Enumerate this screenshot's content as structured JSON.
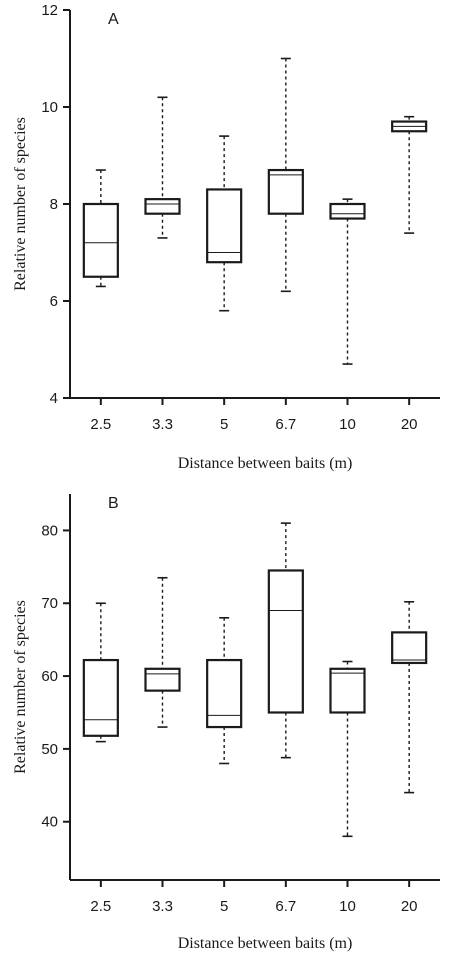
{
  "chart_data": [
    {
      "type": "box",
      "panel_label": "A",
      "xlabel": "Distance between baits (m)",
      "ylabel": "Relative number of species",
      "categories": [
        "2.5",
        "3.3",
        "5",
        "6.7",
        "10",
        "20"
      ],
      "ylim": [
        4,
        12
      ],
      "yticks": [
        4,
        6,
        8,
        10,
        12
      ],
      "grid": false,
      "boxes": [
        {
          "min": 6.3,
          "q1": 6.5,
          "median": 7.2,
          "q3": 8.0,
          "max": 8.7
        },
        {
          "min": 7.3,
          "q1": 7.8,
          "median": 8.0,
          "q3": 8.1,
          "max": 10.2
        },
        {
          "min": 5.8,
          "q1": 6.8,
          "median": 7.0,
          "q3": 8.3,
          "max": 9.4
        },
        {
          "min": 6.2,
          "q1": 7.8,
          "median": 8.6,
          "q3": 8.7,
          "max": 11.0
        },
        {
          "min": 4.7,
          "q1": 7.7,
          "median": 7.8,
          "q3": 8.0,
          "max": 8.1
        },
        {
          "min": 7.4,
          "q1": 9.5,
          "median": 9.6,
          "q3": 9.7,
          "max": 9.8
        }
      ]
    },
    {
      "type": "box",
      "panel_label": "B",
      "xlabel": "Distance between baits (m)",
      "ylabel": "Relative number of species",
      "categories": [
        "2.5",
        "3.3",
        "5",
        "6.7",
        "10",
        "20"
      ],
      "ylim": [
        32,
        85
      ],
      "yticks": [
        40,
        50,
        60,
        70,
        80
      ],
      "grid": false,
      "boxes": [
        {
          "min": 51,
          "q1": 51.8,
          "median": 54,
          "q3": 62.2,
          "max": 70
        },
        {
          "min": 53,
          "q1": 58,
          "median": 60.3,
          "q3": 61,
          "max": 73.5
        },
        {
          "min": 48,
          "q1": 53,
          "median": 54.6,
          "q3": 62.2,
          "max": 68
        },
        {
          "min": 48.8,
          "q1": 55,
          "median": 69,
          "q3": 74.5,
          "max": 81
        },
        {
          "min": 38,
          "q1": 55,
          "median": 60.4,
          "q3": 61,
          "max": 62
        },
        {
          "min": 44,
          "q1": 61.8,
          "median": 62.2,
          "q3": 66,
          "max": 70.2
        }
      ]
    }
  ]
}
